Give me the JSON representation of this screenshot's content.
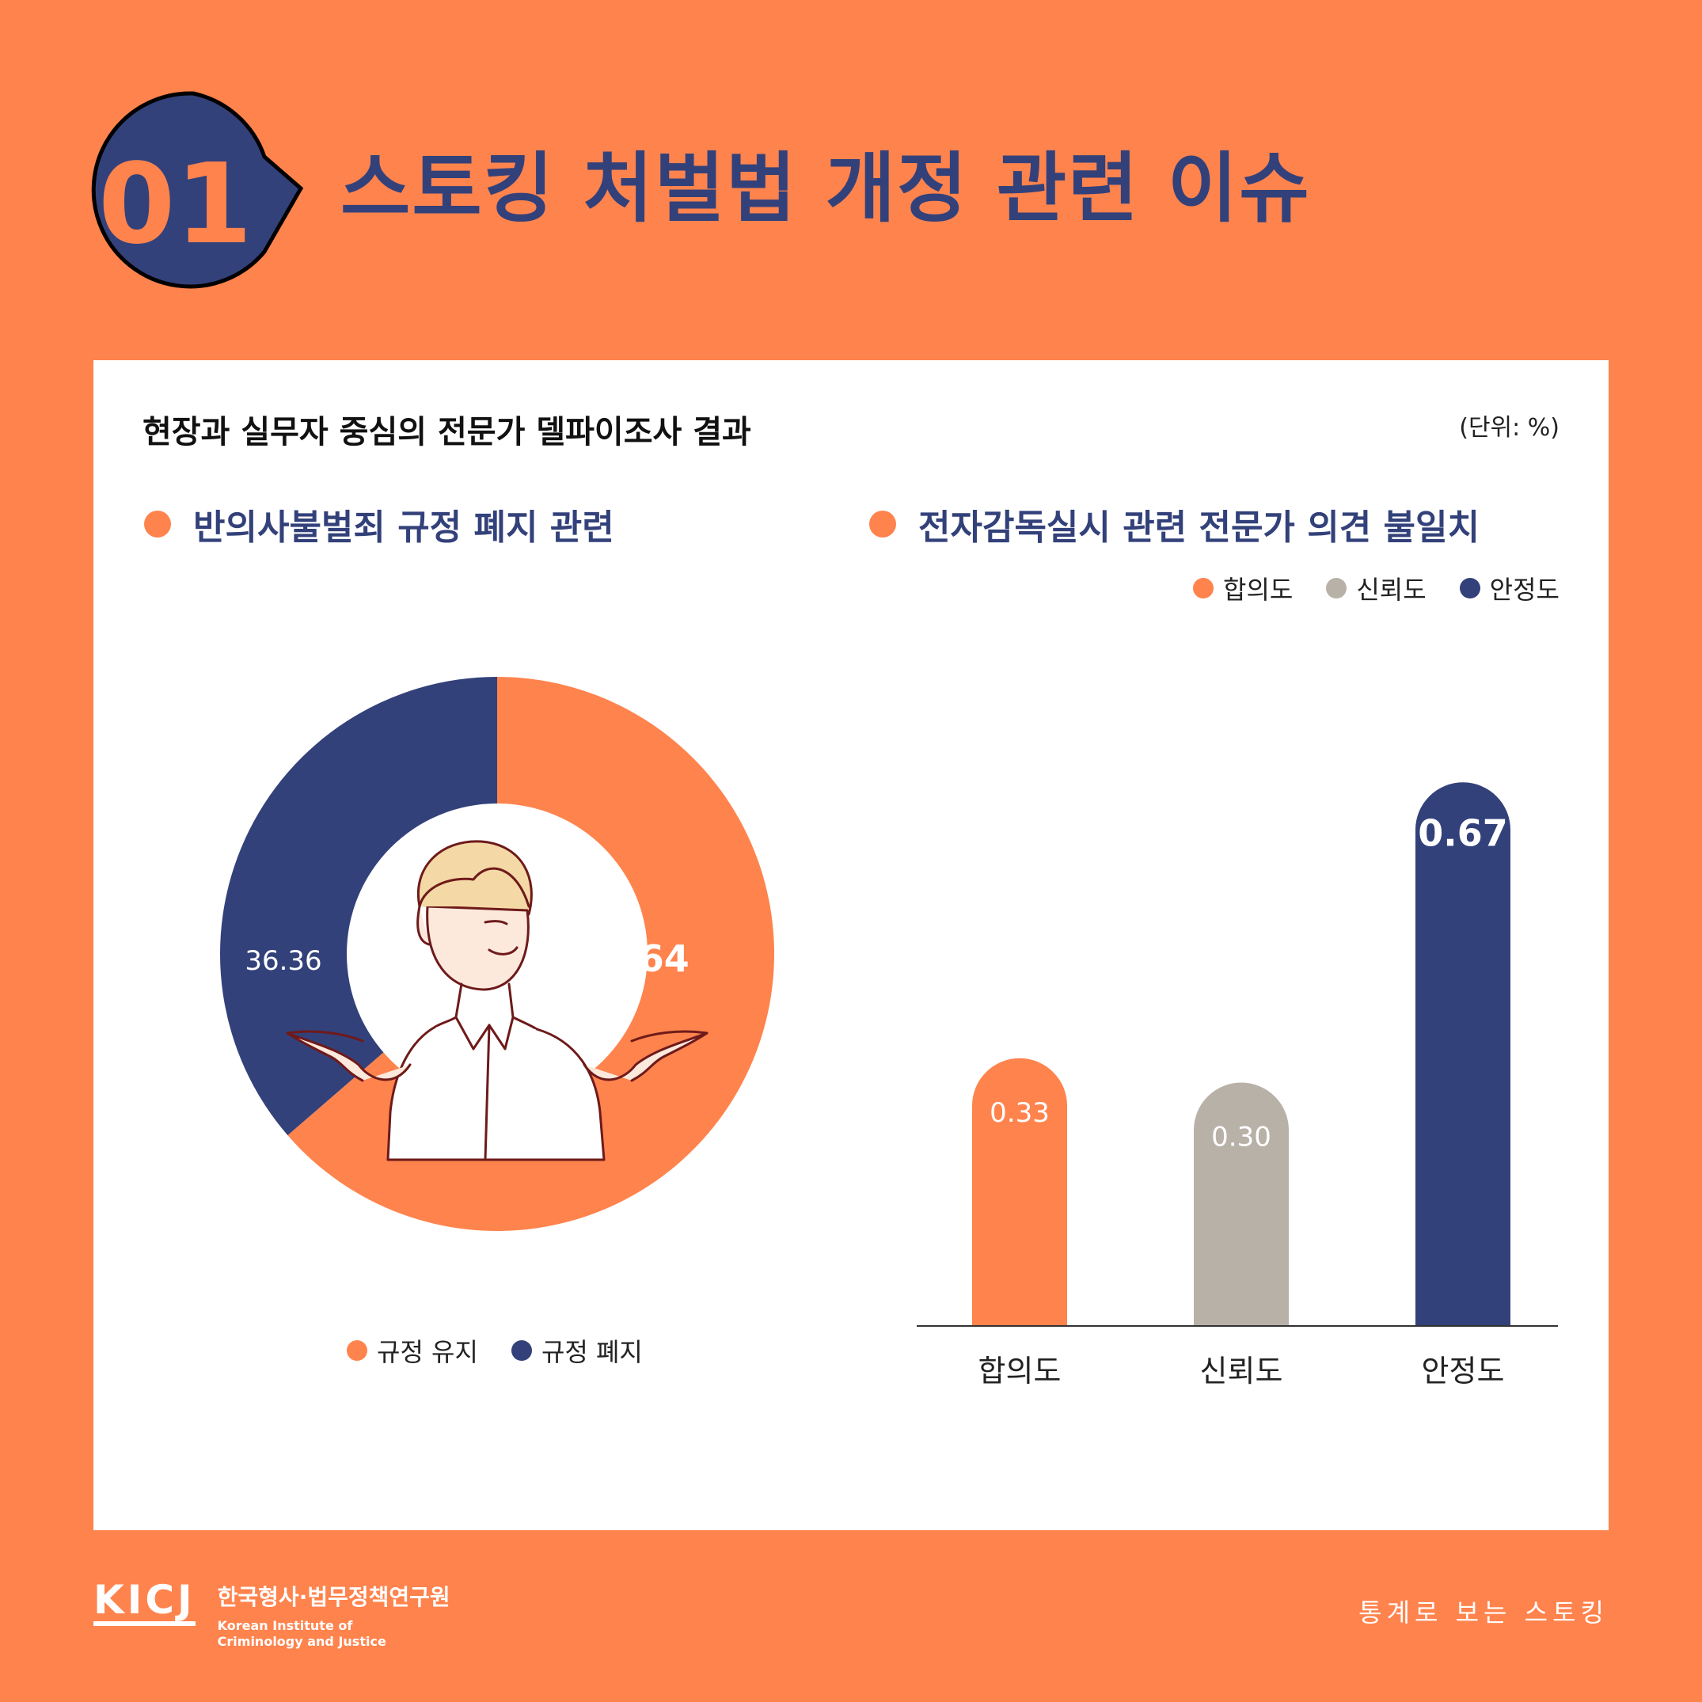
{
  "header": {
    "badge_number": "01",
    "title": "스토킹 처벌법 개정 관련 이슈"
  },
  "card": {
    "survey_title": "현장과 실무자 중심의 전문가 델파이조사 결과",
    "unit": "(단위: %)",
    "left_section_title": "반의사불벌죄 규정 폐지 관련",
    "right_section_title": "전자감독실시 관련 전문가 의견 불일치"
  },
  "legend_left": [
    "규정 유지",
    "규정 폐지"
  ],
  "legend_right": [
    "합의도",
    "신뢰도",
    "안정도"
  ],
  "colors": {
    "orange": "#FF834D",
    "navy": "#33417A",
    "gray": "#B8B1A8",
    "background": "#FF834D"
  },
  "chart_data": [
    {
      "type": "pie",
      "title": "반의사불벌죄 규정 폐지 관련",
      "categories": [
        "규정 유지",
        "규정 폐지"
      ],
      "values": [
        63.64,
        36.36
      ],
      "value_labels": [
        "63.64",
        "36.36"
      ],
      "colors": [
        "#FF834D",
        "#33417A"
      ],
      "legend": "bottom"
    },
    {
      "type": "bar",
      "title": "전자감독실시 관련 전문가 의견 불일치",
      "categories": [
        "합의도",
        "신뢰도",
        "안정도"
      ],
      "values": [
        0.33,
        0.3,
        0.67
      ],
      "value_labels": [
        "0.33",
        "0.30",
        "0.67"
      ],
      "colors": [
        "#FF834D",
        "#B8B1A8",
        "#33417A"
      ],
      "ylim": [
        0,
        0.8
      ],
      "legend": "top-right"
    }
  ],
  "footer": {
    "logo": "KICJ",
    "org_korean": "한국형사·법무정책연구원",
    "org_english_line1": "Korean Institute of",
    "org_english_line2": "Criminology and Justice",
    "series_name": "통계로 보는 스토킹"
  },
  "illustration": {
    "icon": "shrugging-man-icon"
  }
}
